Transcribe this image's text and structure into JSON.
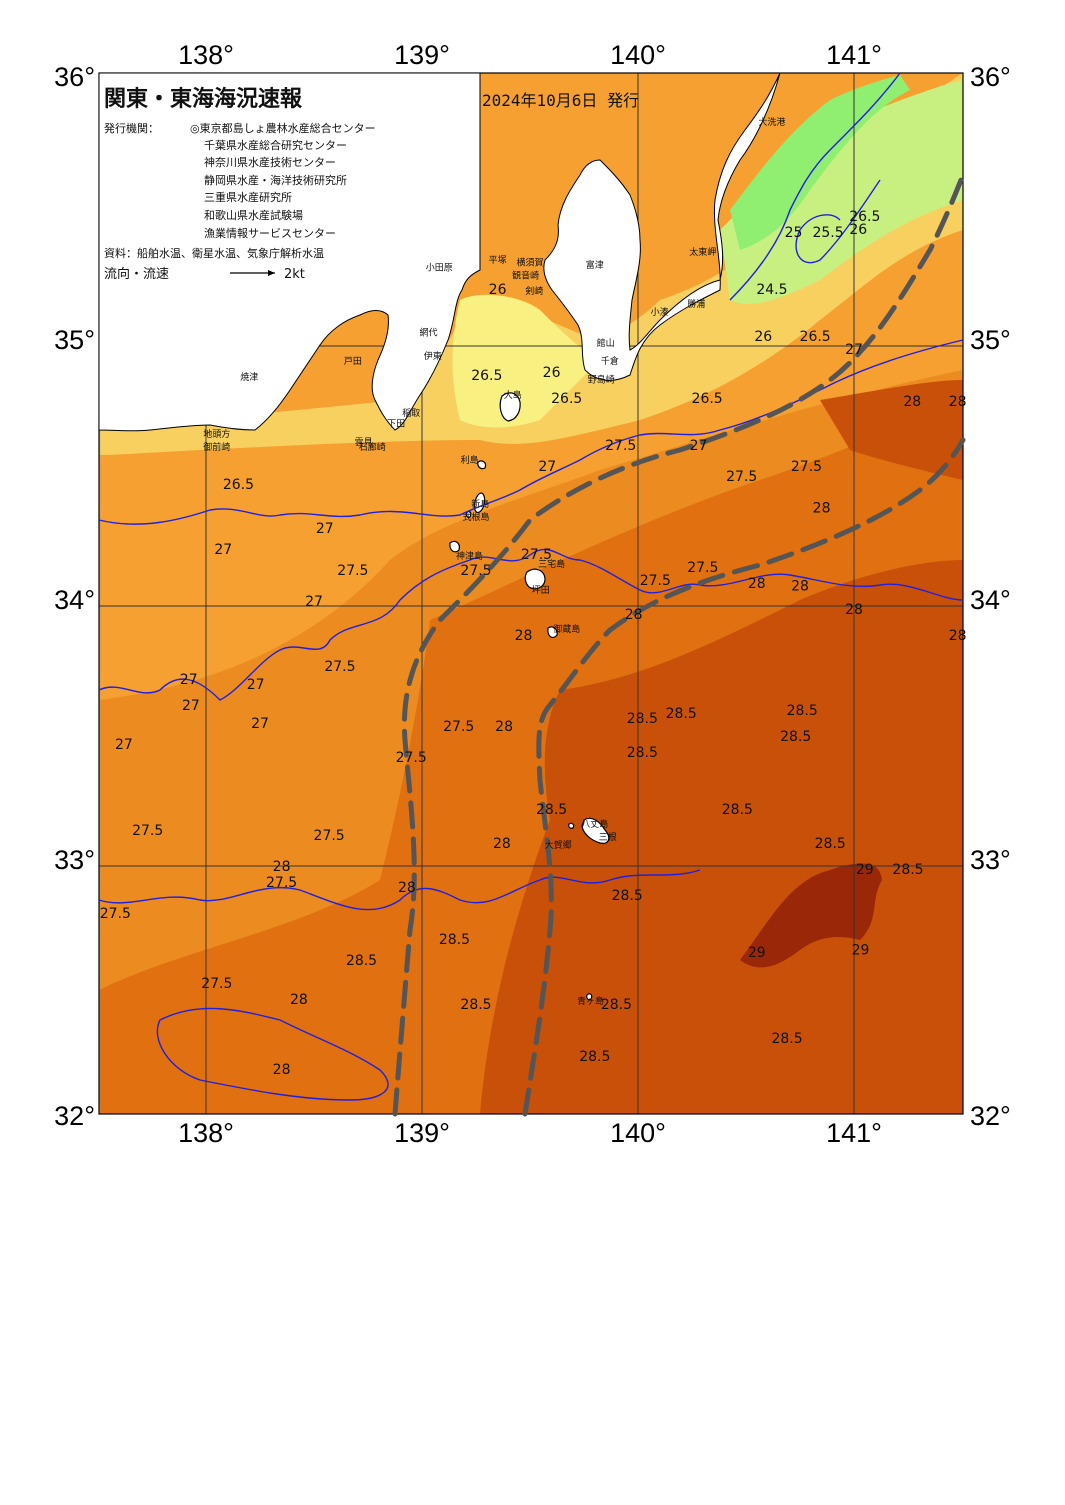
{
  "title": "関東・東海海況速報",
  "issue_date": "2024年10月6日 発行",
  "issuer_label": "発行機関：",
  "issuers": [
    "◎東京都島しょ農林水産総合センター",
    "千葉県水産総合研究センター",
    "神奈川県水産技術センター",
    "静岡県水産・海洋技術研究所",
    "三重県水産研究所",
    "和歌山県水産試験場",
    "漁業情報サービスセンター"
  ],
  "sources": "資料：船舶水温、衛星水温、気象庁解析水温",
  "legend": {
    "label": "流向・流速",
    "scale": "2kt"
  },
  "axes": {
    "lon_labels": [
      "138°",
      "139°",
      "140°",
      "141°"
    ],
    "lat_labels": [
      "36°",
      "35°",
      "34°",
      "33°",
      "32°"
    ]
  },
  "colors": {
    "land": "#ffffff",
    "t24": "#60e860",
    "t25": "#90ee70",
    "t255": "#c8f080",
    "t26": "#f8f080",
    "t265": "#f8d060",
    "t27": "#f5a030",
    "t275": "#ec8c20",
    "t28": "#e07010",
    "t285": "#c85008",
    "t29": "#9a2808",
    "isotherm": "#2020e0",
    "kuroshio": "#555555"
  },
  "contour_labels": [
    {
      "text": "26",
      "lon": 139.35,
      "lat": 35.2
    },
    {
      "text": "26.5",
      "lon": 139.3,
      "lat": 34.87
    },
    {
      "text": "26",
      "lon": 139.6,
      "lat": 34.88
    },
    {
      "text": "26.5",
      "lon": 139.67,
      "lat": 34.78
    },
    {
      "text": "27",
      "lon": 139.58,
      "lat": 34.52
    },
    {
      "text": "27.5",
      "lon": 139.92,
      "lat": 34.6
    },
    {
      "text": "27",
      "lon": 140.28,
      "lat": 34.6
    },
    {
      "text": "26.5",
      "lon": 140.32,
      "lat": 34.78
    },
    {
      "text": "26",
      "lon": 140.58,
      "lat": 35.02
    },
    {
      "text": "26.5",
      "lon": 140.82,
      "lat": 35.02
    },
    {
      "text": "27",
      "lon": 141.0,
      "lat": 34.97
    },
    {
      "text": "24.5",
      "lon": 140.62,
      "lat": 35.2
    },
    {
      "text": "25",
      "lon": 140.72,
      "lat": 35.42
    },
    {
      "text": "25.5",
      "lon": 140.88,
      "lat": 35.42
    },
    {
      "text": "26.5",
      "lon": 141.05,
      "lat": 35.48
    },
    {
      "text": "26",
      "lon": 141.02,
      "lat": 35.43
    },
    {
      "text": "28",
      "lon": 141.27,
      "lat": 34.77
    },
    {
      "text": "28",
      "lon": 141.48,
      "lat": 34.77
    },
    {
      "text": "27.5",
      "lon": 140.48,
      "lat": 34.48
    },
    {
      "text": "27.5",
      "lon": 140.78,
      "lat": 34.52
    },
    {
      "text": "28",
      "lon": 140.85,
      "lat": 34.36
    },
    {
      "text": "27.5",
      "lon": 140.3,
      "lat": 34.13
    },
    {
      "text": "27.5",
      "lon": 140.08,
      "lat": 34.08
    },
    {
      "text": "28",
      "lon": 140.55,
      "lat": 34.07
    },
    {
      "text": "28",
      "lon": 140.75,
      "lat": 34.06
    },
    {
      "text": "28",
      "lon": 141.0,
      "lat": 33.97
    },
    {
      "text": "28",
      "lon": 141.48,
      "lat": 33.87
    },
    {
      "text": "28",
      "lon": 139.98,
      "lat": 33.95
    },
    {
      "text": "28",
      "lon": 139.47,
      "lat": 33.87
    },
    {
      "text": "27.5",
      "lon": 139.53,
      "lat": 34.18
    },
    {
      "text": "27.5",
      "lon": 139.25,
      "lat": 34.12
    },
    {
      "text": "27.5",
      "lon": 138.68,
      "lat": 34.12
    },
    {
      "text": "27",
      "lon": 138.55,
      "lat": 34.28
    },
    {
      "text": "27",
      "lon": 138.5,
      "lat": 34.0
    },
    {
      "text": "27",
      "lon": 138.08,
      "lat": 34.2
    },
    {
      "text": "26.5",
      "lon": 138.15,
      "lat": 34.45
    },
    {
      "text": "27.5",
      "lon": 138.62,
      "lat": 33.75
    },
    {
      "text": "27",
      "lon": 137.92,
      "lat": 33.7
    },
    {
      "text": "27",
      "lon": 137.93,
      "lat": 33.6
    },
    {
      "text": "27",
      "lon": 138.23,
      "lat": 33.68
    },
    {
      "text": "27",
      "lon": 138.25,
      "lat": 33.53
    },
    {
      "text": "27",
      "lon": 137.62,
      "lat": 33.45
    },
    {
      "text": "27.5",
      "lon": 139.17,
      "lat": 33.52
    },
    {
      "text": "27.5",
      "lon": 138.95,
      "lat": 33.4
    },
    {
      "text": "28",
      "lon": 139.38,
      "lat": 33.52
    },
    {
      "text": "28.5",
      "lon": 140.2,
      "lat": 33.57
    },
    {
      "text": "28.5",
      "lon": 140.02,
      "lat": 33.55
    },
    {
      "text": "28.5",
      "lon": 140.02,
      "lat": 33.42
    },
    {
      "text": "28.5",
      "lon": 140.76,
      "lat": 33.58
    },
    {
      "text": "28.5",
      "lon": 140.73,
      "lat": 33.48
    },
    {
      "text": "28.5",
      "lon": 140.46,
      "lat": 33.2
    },
    {
      "text": "28.5",
      "lon": 140.89,
      "lat": 33.07
    },
    {
      "text": "28.5",
      "lon": 139.6,
      "lat": 33.2
    },
    {
      "text": "28",
      "lon": 139.37,
      "lat": 33.07
    },
    {
      "text": "27.5",
      "lon": 138.57,
      "lat": 33.1
    },
    {
      "text": "27.5",
      "lon": 137.73,
      "lat": 33.12
    },
    {
      "text": "28",
      "lon": 138.35,
      "lat": 32.98
    },
    {
      "text": "27.5",
      "lon": 138.35,
      "lat": 32.92
    },
    {
      "text": "28",
      "lon": 138.93,
      "lat": 32.9
    },
    {
      "text": "28.5",
      "lon": 139.15,
      "lat": 32.7
    },
    {
      "text": "28.5",
      "lon": 138.72,
      "lat": 32.62
    },
    {
      "text": "27.5",
      "lon": 137.58,
      "lat": 32.8
    },
    {
      "text": "27.5",
      "lon": 138.05,
      "lat": 32.53
    },
    {
      "text": "28.5",
      "lon": 139.95,
      "lat": 32.87
    },
    {
      "text": "28",
      "lon": 138.43,
      "lat": 32.47
    },
    {
      "text": "28.5",
      "lon": 139.25,
      "lat": 32.45
    },
    {
      "text": "28.5",
      "lon": 139.9,
      "lat": 32.45
    },
    {
      "text": "28.5",
      "lon": 139.8,
      "lat": 32.25
    },
    {
      "text": "28.5",
      "lon": 140.69,
      "lat": 32.32
    },
    {
      "text": "28",
      "lon": 138.35,
      "lat": 32.2
    },
    {
      "text": "29",
      "lon": 141.05,
      "lat": 32.97
    },
    {
      "text": "28.5",
      "lon": 141.25,
      "lat": 32.97
    },
    {
      "text": "29",
      "lon": 140.55,
      "lat": 32.65
    },
    {
      "text": "29",
      "lon": 141.03,
      "lat": 32.66
    }
  ],
  "places": [
    {
      "text": "大洗港",
      "lon": 140.62,
      "lat": 35.85
    },
    {
      "text": "太東岬",
      "lon": 140.3,
      "lat": 35.35
    },
    {
      "text": "勝浦",
      "lon": 140.27,
      "lat": 35.15
    },
    {
      "text": "小湊",
      "lon": 140.1,
      "lat": 35.12
    },
    {
      "text": "館山",
      "lon": 139.85,
      "lat": 35.0
    },
    {
      "text": "千倉",
      "lon": 139.87,
      "lat": 34.93
    },
    {
      "text": "野島崎",
      "lon": 139.83,
      "lat": 34.86
    },
    {
      "text": "富津",
      "lon": 139.8,
      "lat": 35.3
    },
    {
      "text": "観音崎",
      "lon": 139.48,
      "lat": 35.26
    },
    {
      "text": "横須賀",
      "lon": 139.5,
      "lat": 35.31
    },
    {
      "text": "平塚",
      "lon": 139.35,
      "lat": 35.32
    },
    {
      "text": "小田原",
      "lon": 139.08,
      "lat": 35.29
    },
    {
      "text": "剣崎",
      "lon": 139.52,
      "lat": 35.2
    },
    {
      "text": "伊東",
      "lon": 139.05,
      "lat": 34.95
    },
    {
      "text": "網代",
      "lon": 139.03,
      "lat": 35.04
    },
    {
      "text": "大島",
      "lon": 139.42,
      "lat": 34.8
    },
    {
      "text": "利島",
      "lon": 139.22,
      "lat": 34.55
    },
    {
      "text": "新島",
      "lon": 139.27,
      "lat": 34.38
    },
    {
      "text": "式根島",
      "lon": 139.25,
      "lat": 34.33
    },
    {
      "text": "神津島",
      "lon": 139.22,
      "lat": 34.18
    },
    {
      "text": "三宅島",
      "lon": 139.6,
      "lat": 34.15
    },
    {
      "text": "坪田",
      "lon": 139.55,
      "lat": 34.05
    },
    {
      "text": "御蔵島",
      "lon": 139.67,
      "lat": 33.9
    },
    {
      "text": "八丈島",
      "lon": 139.8,
      "lat": 33.15
    },
    {
      "text": "三根",
      "lon": 139.86,
      "lat": 33.1
    },
    {
      "text": "大賀郷",
      "lon": 139.63,
      "lat": 33.07
    },
    {
      "text": "青ヶ島",
      "lon": 139.78,
      "lat": 32.47
    },
    {
      "text": "焼津",
      "lon": 138.2,
      "lat": 34.87
    },
    {
      "text": "地頭方",
      "lon": 138.05,
      "lat": 34.65
    },
    {
      "text": "御前崎",
      "lon": 138.05,
      "lat": 34.6
    },
    {
      "text": "戸田",
      "lon": 138.68,
      "lat": 34.93
    },
    {
      "text": "稲取",
      "lon": 138.95,
      "lat": 34.73
    },
    {
      "text": "下田",
      "lon": 138.88,
      "lat": 34.69
    },
    {
      "text": "雲見",
      "lon": 138.73,
      "lat": 34.62
    },
    {
      "text": "石廊崎",
      "lon": 138.77,
      "lat": 34.6
    }
  ]
}
